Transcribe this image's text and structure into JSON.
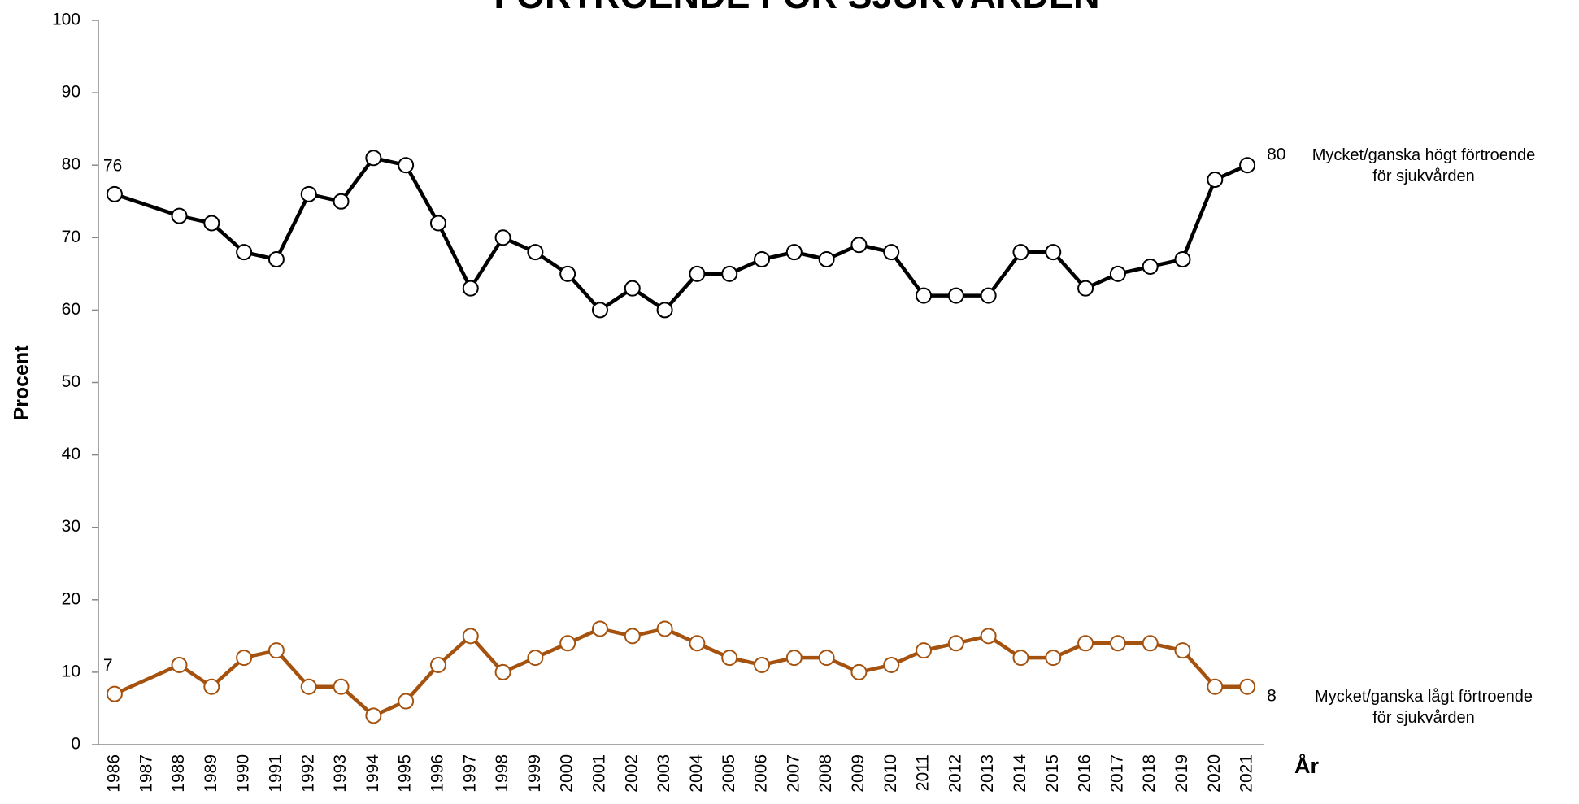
{
  "chart_data": {
    "type": "line",
    "title": "FÖRTROENDE FÖR SJUKVÅRDEN",
    "y_label": "Procent",
    "x_label": "År",
    "x": [
      1986,
      1988,
      1989,
      1990,
      1991,
      1992,
      1993,
      1994,
      1995,
      1996,
      1997,
      1998,
      1999,
      2000,
      2001,
      2002,
      2003,
      2004,
      2005,
      2006,
      2007,
      2008,
      2009,
      2010,
      2011,
      2012,
      2013,
      2014,
      2015,
      2016,
      2017,
      2018,
      2019,
      2020,
      2021
    ],
    "series": [
      {
        "name": "Mycket/ganska högt förtroende\nför sjukvården",
        "color": "#000000",
        "values": [
          76,
          73,
          72,
          68,
          67,
          76,
          75,
          81,
          80,
          72,
          63,
          70,
          68,
          65,
          60,
          63,
          60,
          65,
          65,
          67,
          68,
          67,
          69,
          68,
          62,
          62,
          62,
          68,
          68,
          63,
          65,
          66,
          67,
          78,
          80
        ]
      },
      {
        "name": "Mycket/ganska lågt förtroende\nför sjukvården",
        "color": "#a5520f",
        "values": [
          7,
          11,
          8,
          12,
          13,
          8,
          8,
          4,
          6,
          11,
          15,
          10,
          12,
          14,
          16,
          15,
          16,
          14,
          12,
          11,
          12,
          12,
          10,
          11,
          13,
          14,
          15,
          12,
          12,
          14,
          14,
          14,
          13,
          8,
          8
        ]
      }
    ],
    "xlim": [
      1985.5,
      2021.5
    ],
    "xticks": [
      1986,
      1987,
      1988,
      1989,
      1990,
      1991,
      1992,
      1993,
      1994,
      1995,
      1996,
      1997,
      1998,
      1999,
      2000,
      2001,
      2002,
      2003,
      2004,
      2005,
      2006,
      2007,
      2008,
      2009,
      2010,
      2011,
      2012,
      2013,
      2014,
      2015,
      2016,
      2017,
      2018,
      2019,
      2020,
      2021
    ],
    "ylim": [
      0,
      100
    ],
    "yticks": [
      0,
      10,
      20,
      30,
      40,
      50,
      60,
      70,
      80,
      90,
      100
    ],
    "grid": false
  }
}
